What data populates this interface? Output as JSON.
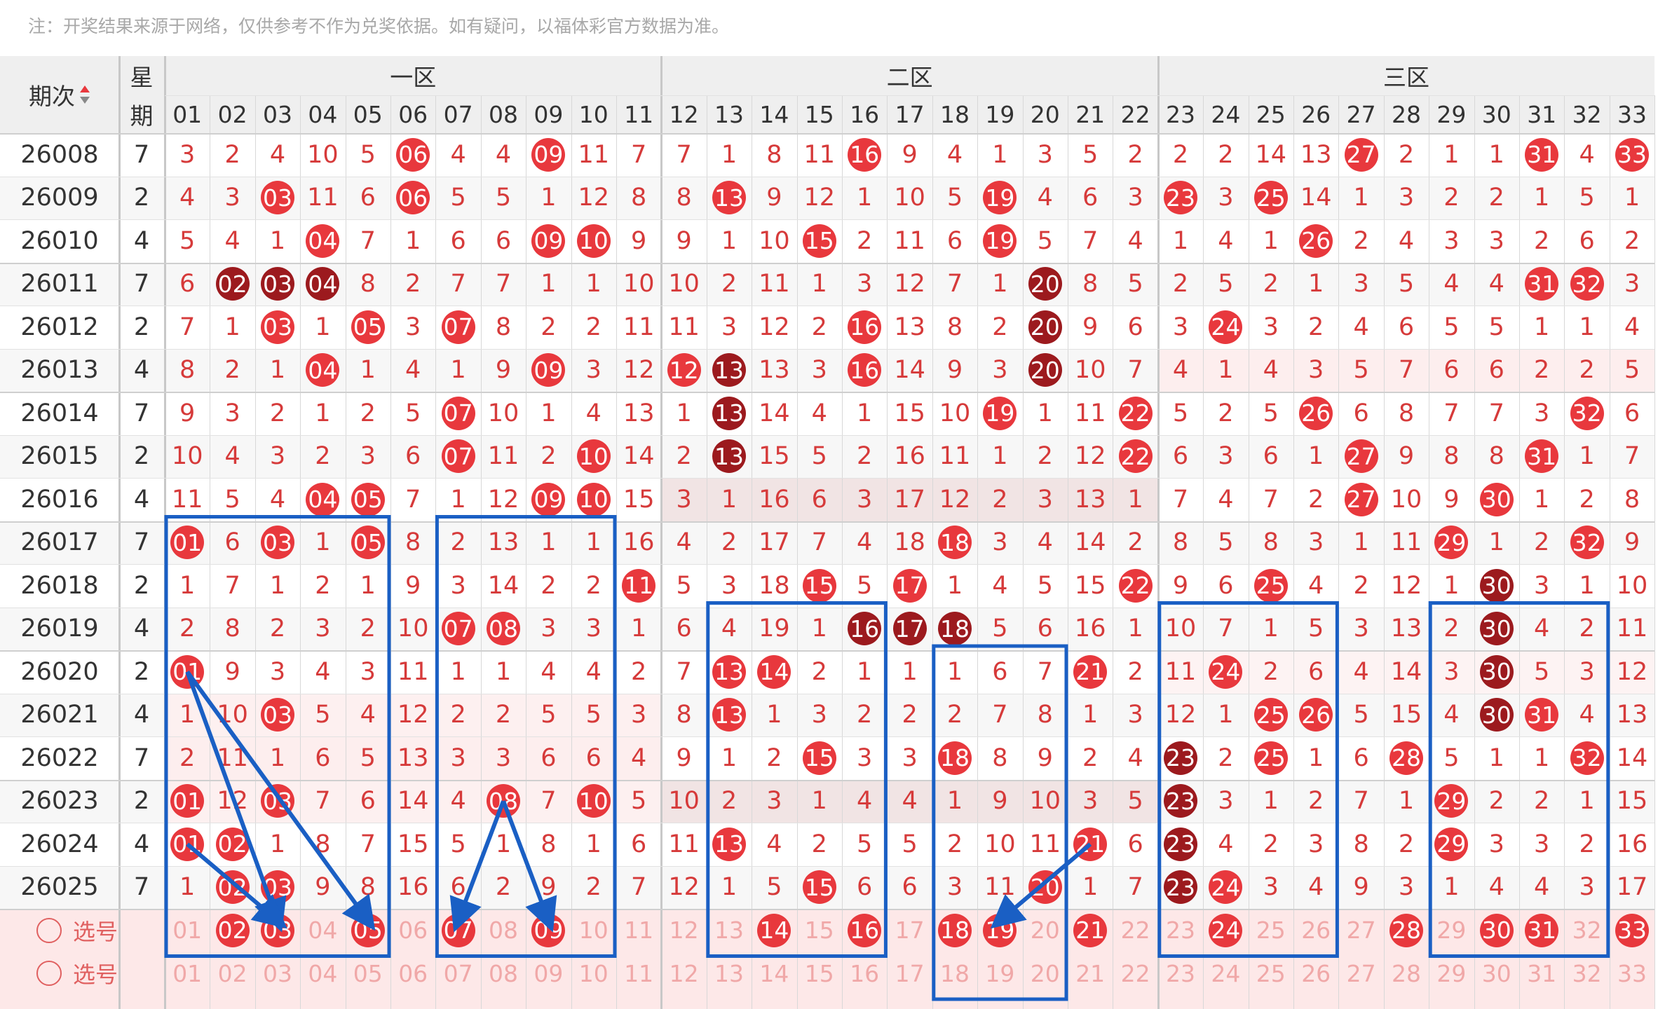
{
  "note": "注：开奖结果来源于网络，仅供参考不作为兑奖依据。如有疑问，以福体彩官方数据为准。",
  "header": {
    "period_label": "期次",
    "sort_icon": "sort-up-down-icon",
    "week_label_top": "星",
    "week_label_bottom": "期",
    "zones": [
      "一区",
      "二区",
      "三区"
    ]
  },
  "columns": [
    "01",
    "02",
    "03",
    "04",
    "05",
    "06",
    "07",
    "08",
    "09",
    "10",
    "11",
    "12",
    "13",
    "14",
    "15",
    "16",
    "17",
    "18",
    "19",
    "20",
    "21",
    "22",
    "23",
    "24",
    "25",
    "26",
    "27",
    "28",
    "29",
    "30",
    "31",
    "32",
    "33"
  ],
  "rows": [
    {
      "period": "26008",
      "week": "7",
      "cells": [
        "3",
        "2",
        "4",
        "10",
        "5",
        "06",
        "4",
        "4",
        "09",
        "11",
        "7",
        "7",
        "1",
        "8",
        "11",
        "16",
        "9",
        "4",
        "1",
        "3",
        "5",
        "2",
        "2",
        "2",
        "14",
        "13",
        "27",
        "2",
        "1",
        "1",
        "31",
        "4",
        "33"
      ],
      "hits": [
        6,
        9,
        16,
        27,
        31,
        33
      ],
      "dark": []
    },
    {
      "period": "26009",
      "week": "2",
      "cells": [
        "4",
        "3",
        "03",
        "11",
        "6",
        "06",
        "5",
        "5",
        "1",
        "12",
        "8",
        "8",
        "13",
        "9",
        "12",
        "1",
        "10",
        "5",
        "19",
        "4",
        "6",
        "3",
        "23",
        "3",
        "25",
        "14",
        "1",
        "3",
        "2",
        "2",
        "1",
        "5",
        "1"
      ],
      "hits": [
        3,
        6,
        13,
        19,
        23,
        25
      ],
      "dark": []
    },
    {
      "period": "26010",
      "week": "4",
      "cells": [
        "5",
        "4",
        "1",
        "04",
        "7",
        "1",
        "6",
        "6",
        "09",
        "10",
        "9",
        "9",
        "1",
        "10",
        "15",
        "2",
        "11",
        "6",
        "19",
        "5",
        "7",
        "4",
        "1",
        "4",
        "1",
        "26",
        "2",
        "4",
        "3",
        "3",
        "2",
        "6",
        "2"
      ],
      "hits": [
        4,
        9,
        10,
        15,
        19,
        26
      ],
      "dark": []
    },
    {
      "period": "26011",
      "week": "7",
      "cells": [
        "6",
        "02",
        "03",
        "04",
        "8",
        "2",
        "7",
        "7",
        "1",
        "1",
        "10",
        "10",
        "2",
        "11",
        "1",
        "3",
        "12",
        "7",
        "1",
        "20",
        "8",
        "5",
        "2",
        "5",
        "2",
        "1",
        "3",
        "5",
        "4",
        "4",
        "31",
        "32",
        "3"
      ],
      "hits": [
        2,
        3,
        4,
        20,
        31,
        32
      ],
      "dark": [
        2,
        3,
        4,
        20
      ]
    },
    {
      "period": "26012",
      "week": "2",
      "cells": [
        "7",
        "1",
        "03",
        "1",
        "05",
        "3",
        "07",
        "8",
        "2",
        "2",
        "11",
        "11",
        "3",
        "12",
        "2",
        "16",
        "13",
        "8",
        "2",
        "20",
        "9",
        "6",
        "3",
        "24",
        "3",
        "2",
        "4",
        "6",
        "5",
        "5",
        "1",
        "1",
        "4"
      ],
      "hits": [
        3,
        5,
        7,
        16,
        20,
        24
      ],
      "dark": [
        20
      ]
    },
    {
      "period": "26013",
      "week": "4",
      "cells": [
        "8",
        "2",
        "1",
        "04",
        "1",
        "4",
        "1",
        "9",
        "09",
        "3",
        "12",
        "12",
        "13",
        "13",
        "3",
        "16",
        "14",
        "9",
        "3",
        "20",
        "10",
        "7",
        "4",
        "1",
        "4",
        "3",
        "5",
        "7",
        "6",
        "6",
        "2",
        "2",
        "5"
      ],
      "hits": [
        4,
        9,
        12,
        13,
        16,
        20
      ],
      "dark": [
        13,
        20
      ]
    },
    {
      "period": "26014",
      "week": "7",
      "cells": [
        "9",
        "3",
        "2",
        "1",
        "2",
        "5",
        "07",
        "10",
        "1",
        "4",
        "13",
        "1",
        "13",
        "14",
        "4",
        "1",
        "15",
        "10",
        "19",
        "1",
        "11",
        "22",
        "5",
        "2",
        "5",
        "26",
        "6",
        "8",
        "7",
        "7",
        "3",
        "32",
        "6"
      ],
      "hits": [
        7,
        13,
        19,
        22,
        26,
        32
      ],
      "dark": [
        13
      ]
    },
    {
      "period": "26015",
      "week": "2",
      "cells": [
        "10",
        "4",
        "3",
        "2",
        "3",
        "6",
        "07",
        "11",
        "2",
        "10",
        "14",
        "2",
        "13",
        "15",
        "5",
        "2",
        "16",
        "11",
        "1",
        "2",
        "12",
        "22",
        "6",
        "3",
        "6",
        "1",
        "27",
        "9",
        "8",
        "8",
        "31",
        "1",
        "7"
      ],
      "hits": [
        7,
        10,
        13,
        22,
        27,
        31
      ],
      "dark": [
        13
      ]
    },
    {
      "period": "26016",
      "week": "4",
      "cells": [
        "11",
        "5",
        "4",
        "04",
        "05",
        "7",
        "1",
        "12",
        "09",
        "10",
        "15",
        "3",
        "1",
        "16",
        "6",
        "3",
        "17",
        "12",
        "2",
        "3",
        "13",
        "1",
        "7",
        "4",
        "7",
        "2",
        "27",
        "10",
        "9",
        "30",
        "1",
        "2",
        "8"
      ],
      "hits": [
        4,
        5,
        9,
        10,
        27,
        30
      ],
      "dark": []
    },
    {
      "period": "26017",
      "week": "7",
      "cells": [
        "01",
        "6",
        "03",
        "1",
        "05",
        "8",
        "2",
        "13",
        "1",
        "1",
        "16",
        "4",
        "2",
        "17",
        "7",
        "4",
        "18",
        "18",
        "3",
        "4",
        "14",
        "2",
        "8",
        "5",
        "8",
        "3",
        "1",
        "11",
        "29",
        "1",
        "2",
        "32",
        "9"
      ],
      "hits": [
        1,
        3,
        5,
        18,
        29,
        32
      ],
      "dark": []
    },
    {
      "period": "26018",
      "week": "2",
      "cells": [
        "1",
        "7",
        "1",
        "2",
        "1",
        "9",
        "3",
        "14",
        "2",
        "2",
        "11",
        "5",
        "3",
        "18",
        "15",
        "5",
        "17",
        "1",
        "4",
        "5",
        "15",
        "22",
        "9",
        "6",
        "25",
        "4",
        "2",
        "12",
        "1",
        "30",
        "3",
        "1",
        "10"
      ],
      "hits": [
        11,
        15,
        17,
        22,
        25,
        30
      ],
      "dark": [
        30
      ]
    },
    {
      "period": "26019",
      "week": "4",
      "cells": [
        "2",
        "8",
        "2",
        "3",
        "2",
        "10",
        "07",
        "08",
        "3",
        "3",
        "1",
        "6",
        "4",
        "19",
        "1",
        "16",
        "17",
        "18",
        "5",
        "6",
        "16",
        "1",
        "10",
        "7",
        "1",
        "5",
        "3",
        "13",
        "2",
        "30",
        "4",
        "2",
        "11"
      ],
      "hits": [
        7,
        8,
        16,
        17,
        18,
        30
      ],
      "dark": [
        16,
        17,
        18,
        30
      ]
    },
    {
      "period": "26020",
      "week": "2",
      "cells": [
        "01",
        "9",
        "3",
        "4",
        "3",
        "11",
        "1",
        "1",
        "4",
        "4",
        "2",
        "7",
        "13",
        "14",
        "2",
        "1",
        "1",
        "1",
        "6",
        "7",
        "21",
        "2",
        "11",
        "24",
        "2",
        "6",
        "4",
        "14",
        "3",
        "30",
        "5",
        "3",
        "12"
      ],
      "hits": [
        1,
        13,
        14,
        21,
        24,
        30
      ],
      "dark": [
        30
      ]
    },
    {
      "period": "26021",
      "week": "4",
      "cells": [
        "1",
        "10",
        "03",
        "5",
        "4",
        "12",
        "2",
        "2",
        "5",
        "5",
        "3",
        "8",
        "13",
        "1",
        "3",
        "2",
        "2",
        "2",
        "7",
        "8",
        "1",
        "3",
        "12",
        "1",
        "25",
        "26",
        "5",
        "15",
        "4",
        "30",
        "31",
        "4",
        "13"
      ],
      "hits": [
        3,
        13,
        25,
        26,
        30,
        31
      ],
      "dark": [
        30
      ]
    },
    {
      "period": "26022",
      "week": "7",
      "cells": [
        "2",
        "11",
        "1",
        "6",
        "5",
        "13",
        "3",
        "3",
        "6",
        "6",
        "4",
        "9",
        "1",
        "2",
        "15",
        "3",
        "3",
        "18",
        "8",
        "9",
        "2",
        "4",
        "23",
        "2",
        "25",
        "1",
        "6",
        "28",
        "5",
        "1",
        "1",
        "32",
        "14"
      ],
      "hits": [
        15,
        18,
        23,
        25,
        28,
        32
      ],
      "dark": [
        23
      ]
    },
    {
      "period": "26023",
      "week": "2",
      "cells": [
        "01",
        "12",
        "03",
        "7",
        "6",
        "14",
        "4",
        "08",
        "7",
        "10",
        "5",
        "10",
        "2",
        "3",
        "1",
        "4",
        "4",
        "1",
        "9",
        "10",
        "3",
        "5",
        "23",
        "3",
        "1",
        "2",
        "7",
        "1",
        "29",
        "2",
        "2",
        "1",
        "15"
      ],
      "hits": [
        1,
        3,
        8,
        10,
        23,
        29
      ],
      "dark": [
        23
      ]
    },
    {
      "period": "26024",
      "week": "4",
      "cells": [
        "01",
        "02",
        "1",
        "8",
        "7",
        "15",
        "5",
        "1",
        "8",
        "1",
        "6",
        "11",
        "13",
        "4",
        "2",
        "5",
        "5",
        "2",
        "10",
        "11",
        "21",
        "6",
        "23",
        "4",
        "2",
        "3",
        "8",
        "2",
        "29",
        "3",
        "3",
        "2",
        "16"
      ],
      "hits": [
        1,
        2,
        13,
        21,
        23,
        29
      ],
      "dark": [
        23
      ]
    },
    {
      "period": "26025",
      "week": "7",
      "cells": [
        "1",
        "02",
        "03",
        "9",
        "8",
        "16",
        "6",
        "2",
        "9",
        "2",
        "7",
        "12",
        "1",
        "5",
        "15",
        "6",
        "6",
        "3",
        "11",
        "20",
        "1",
        "7",
        "23",
        "24",
        "3",
        "4",
        "9",
        "3",
        "1",
        "4",
        "4",
        "3",
        "17"
      ],
      "hits": [
        2,
        3,
        15,
        20,
        23,
        24
      ],
      "dark": [
        23
      ]
    }
  ],
  "select_rows": [
    {
      "label": "选号",
      "picked": [
        2,
        3,
        5,
        7,
        9,
        14,
        16,
        18,
        19,
        21,
        24,
        28,
        30,
        31,
        33
      ]
    },
    {
      "label": "选号",
      "picked": []
    }
  ],
  "colors": {
    "hit": "#e8383d",
    "dark": "#9c1a1e",
    "annotation": "#1a5fc4"
  }
}
